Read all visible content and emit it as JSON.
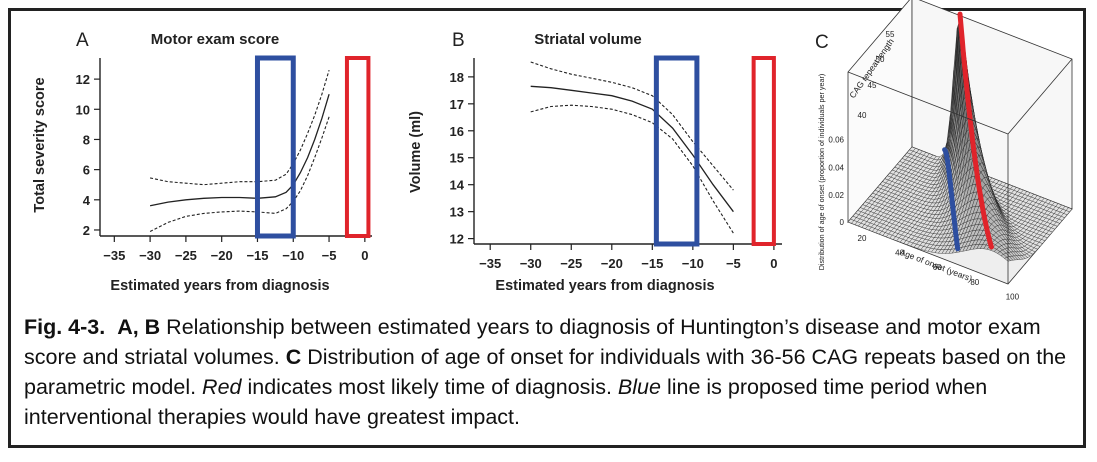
{
  "chart_data": [
    {
      "type": "line",
      "panel_label": "A",
      "title": "Motor exam score",
      "xlabel": "Estimated years from diagnosis",
      "ylabel": "Total severity score",
      "xlim": [
        -37,
        1
      ],
      "ylim": [
        1.6,
        13.4
      ],
      "xticks": [
        -35,
        -30,
        -25,
        -20,
        -15,
        -10,
        -5,
        0
      ],
      "xtick_labels": [
        "−35",
        "−30",
        "−25",
        "−20",
        "−15",
        "−10",
        "−5",
        "0"
      ],
      "yticks": [
        2,
        4,
        6,
        8,
        10,
        12
      ],
      "ytick_labels": [
        "2",
        "4",
        "6",
        "8",
        "10",
        "12"
      ],
      "series": [
        {
          "name": "estimate",
          "style": "solid",
          "x": [
            -30,
            -27.5,
            -25,
            -22.5,
            -20,
            -17.5,
            -15,
            -12.5,
            -11,
            -10,
            -9,
            -8,
            -7,
            -6,
            -5
          ],
          "y": [
            3.6,
            3.85,
            4.0,
            4.1,
            4.15,
            4.15,
            4.1,
            4.2,
            4.5,
            5.0,
            5.8,
            6.8,
            8.0,
            9.4,
            11.0
          ]
        },
        {
          "name": "upper bound",
          "style": "dashed",
          "x": [
            -30,
            -27.5,
            -25,
            -22.5,
            -20,
            -17.5,
            -15,
            -12.5,
            -11,
            -10,
            -9,
            -8,
            -7,
            -6,
            -5
          ],
          "y": [
            5.45,
            5.2,
            5.1,
            5.0,
            5.1,
            5.2,
            5.2,
            5.3,
            5.7,
            6.4,
            7.3,
            8.4,
            9.6,
            11.0,
            12.6
          ]
        },
        {
          "name": "lower bound",
          "style": "dashed",
          "x": [
            -30,
            -27.5,
            -25,
            -22.5,
            -20,
            -17.5,
            -15,
            -12.5,
            -11,
            -10,
            -9,
            -8,
            -7,
            -6,
            -5
          ],
          "y": [
            1.9,
            2.5,
            2.9,
            3.1,
            3.2,
            3.25,
            3.2,
            3.1,
            3.4,
            3.9,
            4.6,
            5.6,
            6.8,
            8.1,
            9.5
          ]
        }
      ],
      "regions": [
        {
          "name": "proposed intervention period",
          "color": "#2e4fa0",
          "x": [
            -15,
            -10
          ]
        },
        {
          "name": "most likely time of diagnosis",
          "color": "#e0242b",
          "x": [
            -2.5,
            0.5
          ]
        }
      ]
    },
    {
      "type": "line",
      "panel_label": "B",
      "title": "Striatal volume",
      "xlabel": "Estimated years from diagnosis",
      "ylabel": "Volume (ml)",
      "xlim": [
        -37,
        1
      ],
      "ylim": [
        11.8,
        18.7
      ],
      "xticks": [
        -35,
        -30,
        -25,
        -20,
        -15,
        -10,
        -5,
        0
      ],
      "xtick_labels": [
        "−35",
        "−30",
        "−25",
        "−20",
        "−15",
        "−10",
        "−5",
        "0"
      ],
      "yticks": [
        12,
        13,
        14,
        15,
        16,
        17,
        18
      ],
      "ytick_labels": [
        "12",
        "13",
        "14",
        "15",
        "16",
        "17",
        "18"
      ],
      "series": [
        {
          "name": "estimate",
          "style": "solid",
          "x": [
            -30,
            -27.5,
            -25,
            -22.5,
            -20,
            -17.5,
            -15,
            -12.5,
            -10,
            -7.5,
            -5
          ],
          "y": [
            17.65,
            17.6,
            17.5,
            17.4,
            17.3,
            17.1,
            16.8,
            16.1,
            15.1,
            14.0,
            13.0
          ]
        },
        {
          "name": "upper bound",
          "style": "dashed",
          "x": [
            -30,
            -27.5,
            -25,
            -22.5,
            -20,
            -17.5,
            -15,
            -12.5,
            -10,
            -7.5,
            -5
          ],
          "y": [
            18.55,
            18.3,
            18.1,
            17.95,
            17.8,
            17.6,
            17.3,
            16.6,
            15.6,
            14.7,
            13.8
          ]
        },
        {
          "name": "lower bound",
          "style": "dashed",
          "x": [
            -30,
            -27.5,
            -25,
            -22.5,
            -20,
            -17.5,
            -15,
            -12.5,
            -10,
            -7.5,
            -5
          ],
          "y": [
            16.7,
            16.9,
            16.95,
            16.9,
            16.8,
            16.6,
            16.3,
            15.7,
            14.7,
            13.4,
            12.2
          ]
        }
      ],
      "regions": [
        {
          "name": "proposed intervention period",
          "color": "#2e4fa0",
          "x": [
            -14.5,
            -9.5
          ]
        },
        {
          "name": "most likely time of diagnosis",
          "color": "#e0242b",
          "x": [
            -2.5,
            0
          ]
        }
      ]
    },
    {
      "type": "surface3d",
      "panel_label": "C",
      "title": "",
      "x_axis_label": "Age of onset (years)",
      "x_ticks": [
        "20",
        "40",
        "60",
        "80",
        "100"
      ],
      "y_axis_label": "CAG repeat length",
      "y_ticks": [
        "40",
        "45",
        "50",
        "55"
      ],
      "z_axis_label": "Distribution of age of onset (proportion of individuals per year)",
      "z_ticks": [
        "0",
        "0.02",
        "0.04",
        "0.06"
      ],
      "curves": [
        {
          "name": "most likely time of diagnosis",
          "color": "#e0242b"
        },
        {
          "name": "proposed intervention period",
          "color": "#2e4fa0"
        }
      ]
    }
  ],
  "caption": {
    "figure_label": "Fig. 4-3.",
    "panels_ab": "A, B",
    "text1": " Relationship between estimated years to diagnosis of Huntington’s disease and motor exam score and striatal volumes. ",
    "panel_c": "C",
    "text2": " Distribution of age of onset for individuals with 36-56 CAG repeats based on the parametric model. ",
    "red_word": "Red",
    "text3": " indicates most likely time of diagnosis. ",
    "blue_word": "Blue",
    "text4": " line is proposed time period when interventional therapies would have greatest impact."
  }
}
